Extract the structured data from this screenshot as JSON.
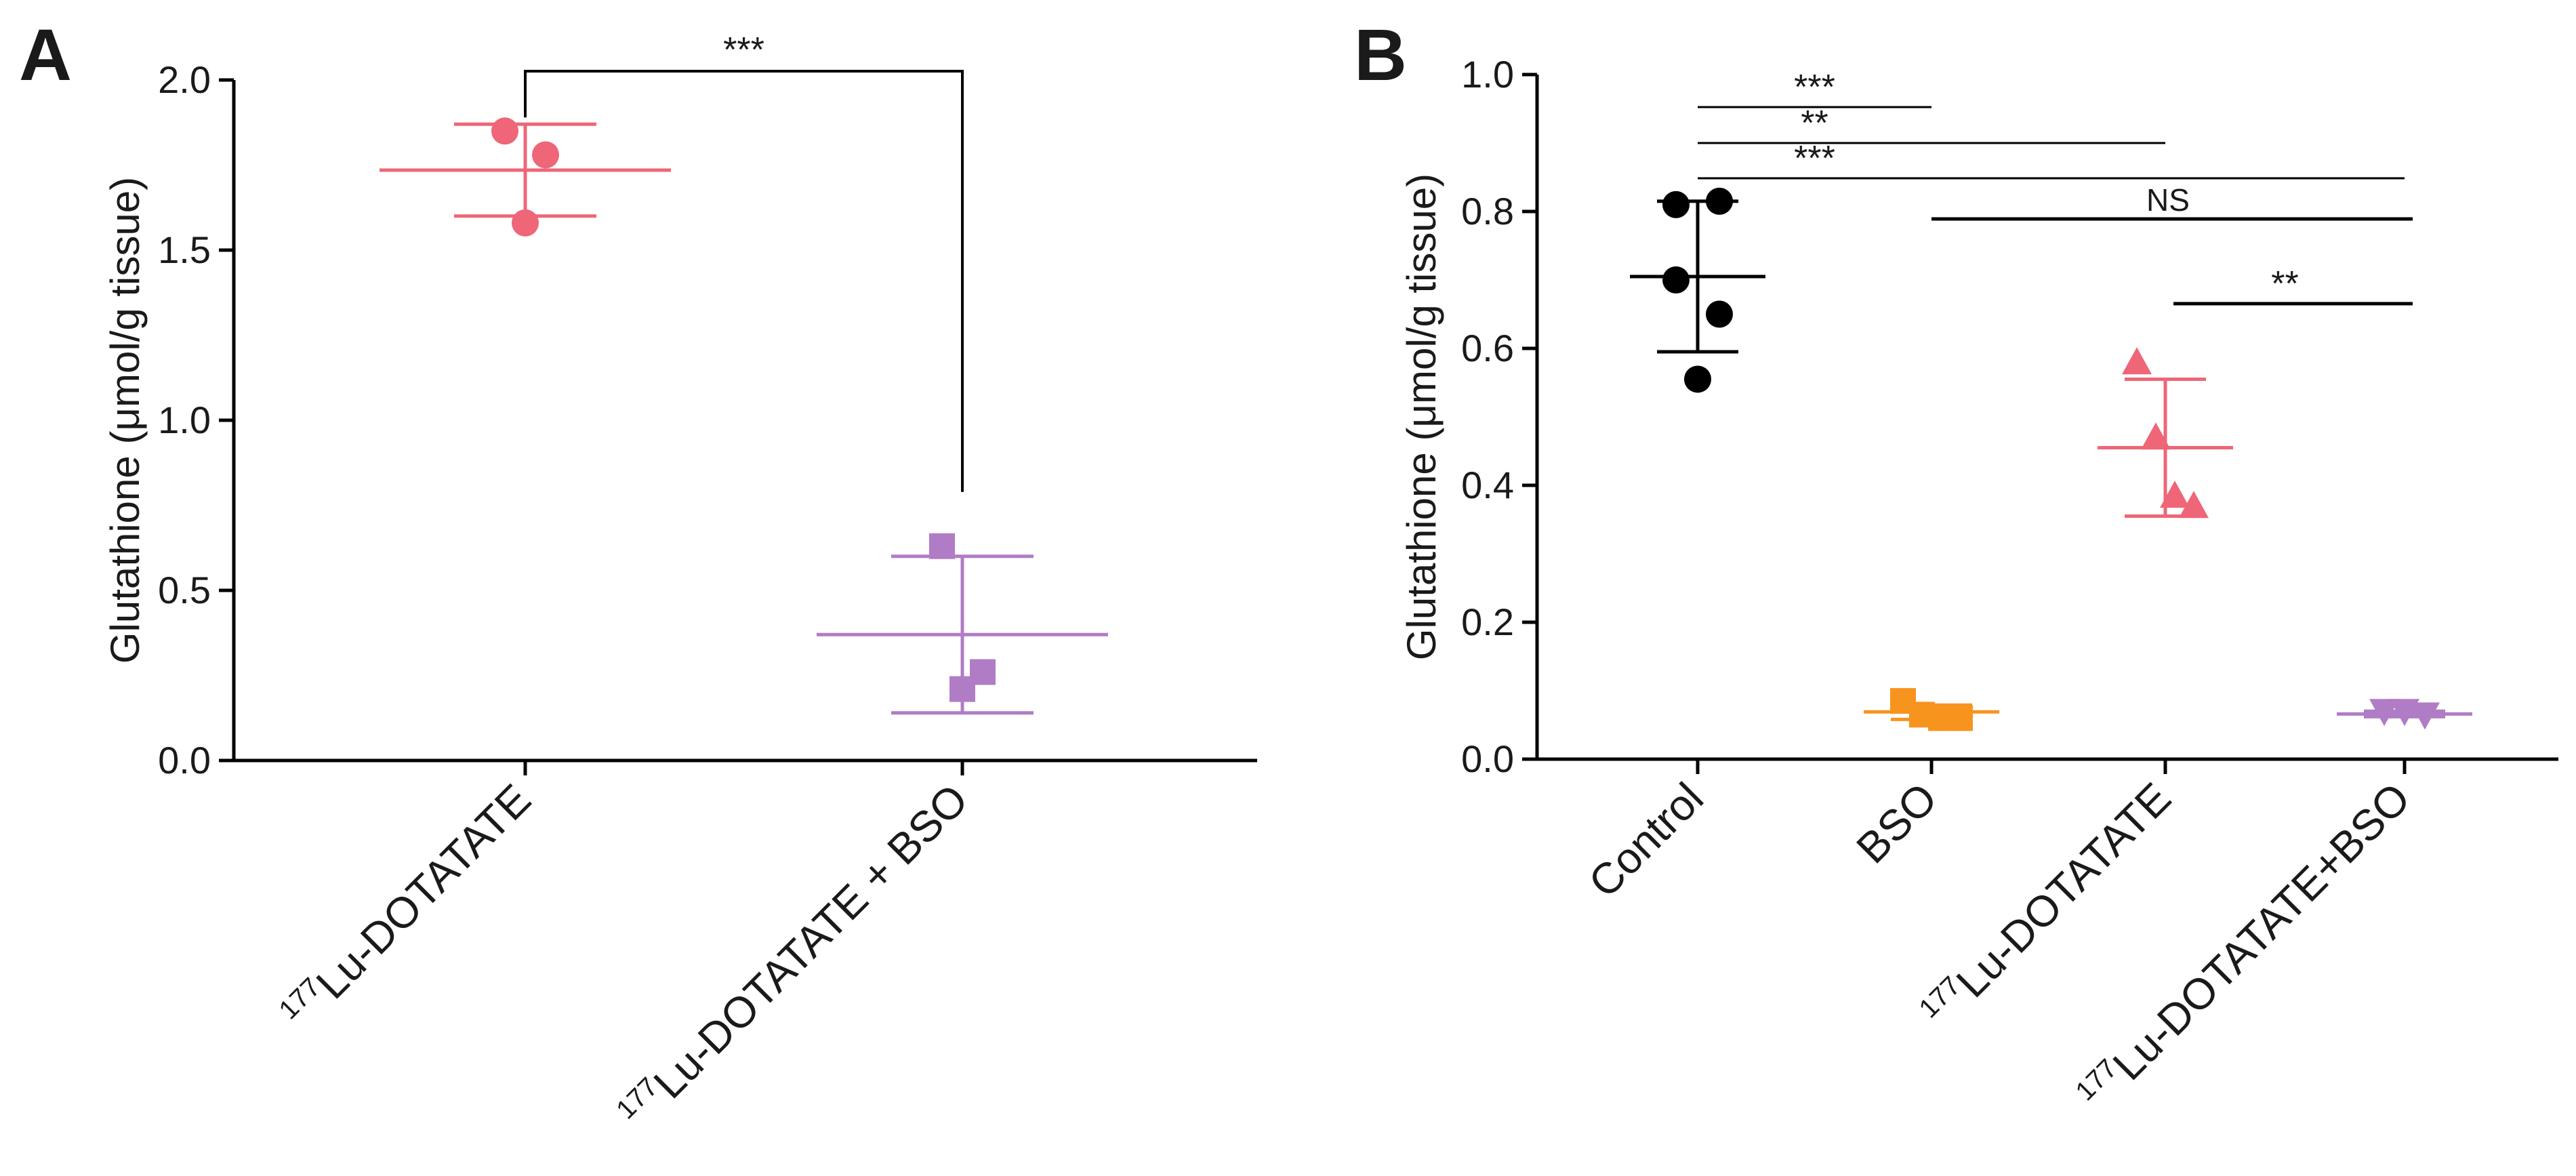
{
  "chart_data": [
    {
      "panel": "A",
      "type": "scatter",
      "ylabel": "Glutathione (μmol/g tissue)",
      "ylim": [
        0,
        2.0
      ],
      "yticks": [
        0.0,
        0.5,
        1.0,
        1.5,
        2.0
      ],
      "yticklabels": [
        "0.0",
        "0.5",
        "1.0",
        "1.5",
        "2.0"
      ],
      "categories": [
        {
          "sup": "177",
          "label": "Lu-DOTATATE"
        },
        {
          "sup": "177",
          "label": "Lu-DOTATATE + BSO"
        }
      ],
      "groups": [
        {
          "name": "177Lu-DOTATATE",
          "color": "#ee6677",
          "marker": "circle",
          "points": [
            1.85,
            1.78,
            1.58
          ],
          "mean": 1.735,
          "sd_low": 1.6,
          "sd_high": 1.87
        },
        {
          "name": "177Lu-DOTATATE + BSO",
          "color": "#b07cc6",
          "marker": "square",
          "points": [
            0.63,
            0.26,
            0.21
          ],
          "mean": 0.37,
          "sd_low": 0.14,
          "sd_high": 0.6
        }
      ],
      "significance": [
        {
          "from": 0,
          "to": 1,
          "label": "***"
        }
      ]
    },
    {
      "panel": "B",
      "type": "scatter",
      "ylabel": "Glutathione (μmol/g tissue)",
      "ylim": [
        0,
        1.0
      ],
      "yticks": [
        0.0,
        0.2,
        0.4,
        0.6,
        0.8,
        1.0
      ],
      "yticklabels": [
        "0.0",
        "0.2",
        "0.4",
        "0.6",
        "0.8",
        "1.0"
      ],
      "categories": [
        {
          "sup": "",
          "label": "Control"
        },
        {
          "sup": "",
          "label": "BSO"
        },
        {
          "sup": "177",
          "label": "Lu-DOTATATE"
        },
        {
          "sup": "177",
          "label": "Lu-DOTATATE+BSO"
        }
      ],
      "groups": [
        {
          "name": "Control",
          "color": "#000000",
          "marker": "circle",
          "points": [
            0.81,
            0.815,
            0.7,
            0.65,
            0.555
          ],
          "mean": 0.705,
          "sd_low": 0.595,
          "sd_high": 0.815
        },
        {
          "name": "BSO",
          "color": "#f7941d",
          "marker": "square",
          "points": [
            0.085,
            0.065,
            0.06,
            0.06
          ],
          "mean": 0.069,
          "sd_low": 0.058,
          "sd_high": 0.079
        },
        {
          "name": "177Lu-DOTATATE",
          "color": "#ee6677",
          "marker": "triangle-up",
          "points": [
            0.58,
            0.47,
            0.385,
            0.37
          ],
          "mean": 0.455,
          "sd_low": 0.355,
          "sd_high": 0.555
        },
        {
          "name": "177Lu-DOTATATE+BSO",
          "color": "#b07cc6",
          "marker": "triangle-down",
          "points": [
            0.07,
            0.065,
            0.07
          ],
          "mean": 0.066,
          "sd_low": 0.062,
          "sd_high": 0.07
        }
      ],
      "significance": [
        {
          "from": 0,
          "to": 1,
          "label": "***"
        },
        {
          "from": 0,
          "to": 2,
          "label": "**"
        },
        {
          "from": 0,
          "to": 3,
          "label": "***"
        },
        {
          "from": 1,
          "to": 3,
          "label": "NS"
        },
        {
          "from": 2,
          "to": 3,
          "label": "**"
        }
      ]
    }
  ]
}
